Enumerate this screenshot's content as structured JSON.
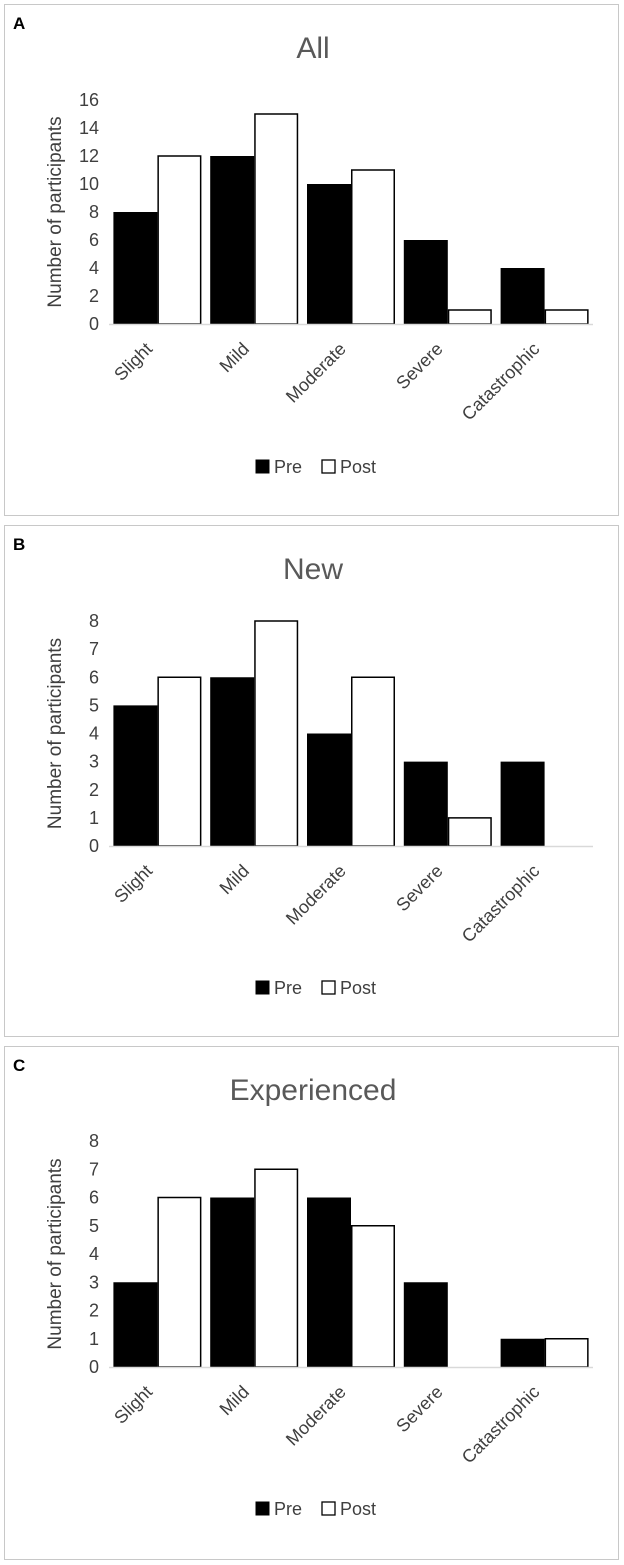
{
  "chart_data": [
    {
      "panel": "A",
      "type": "bar",
      "title": "All",
      "ylabel": "Number of participants",
      "xlabel": "",
      "categories": [
        "Slight",
        "Mild",
        "Moderate",
        "Severe",
        "Catastrophic"
      ],
      "series": [
        {
          "name": "Pre",
          "values": [
            8,
            12,
            10,
            6,
            4
          ]
        },
        {
          "name": "Post",
          "values": [
            12,
            15,
            11,
            1,
            1
          ]
        }
      ],
      "ylim": [
        0,
        16
      ],
      "yticks": [
        0,
        2,
        4,
        6,
        8,
        10,
        12,
        14,
        16
      ],
      "grid": false,
      "legend": "bottom-center"
    },
    {
      "panel": "B",
      "type": "bar",
      "title": "New",
      "ylabel": "Number of participants",
      "xlabel": "",
      "categories": [
        "Slight",
        "Mild",
        "Moderate",
        "Severe",
        "Catastrophic"
      ],
      "series": [
        {
          "name": "Pre",
          "values": [
            5,
            6,
            4,
            3,
            3
          ]
        },
        {
          "name": "Post",
          "values": [
            6,
            8,
            6,
            1,
            0
          ]
        }
      ],
      "ylim": [
        0,
        8
      ],
      "yticks": [
        0,
        1,
        2,
        3,
        4,
        5,
        6,
        7,
        8
      ],
      "grid": false,
      "legend": "bottom-center"
    },
    {
      "panel": "C",
      "type": "bar",
      "title": "Experienced",
      "ylabel": "Number of participants",
      "xlabel": "",
      "categories": [
        "Slight",
        "Mild",
        "Moderate",
        "Severe",
        "Catastrophic"
      ],
      "series": [
        {
          "name": "Pre",
          "values": [
            3,
            6,
            6,
            3,
            1
          ]
        },
        {
          "name": "Post",
          "values": [
            6,
            7,
            5,
            0,
            1
          ]
        }
      ],
      "ylim": [
        0,
        8
      ],
      "yticks": [
        0,
        1,
        2,
        3,
        4,
        5,
        6,
        7,
        8
      ],
      "grid": false,
      "legend": "bottom-center"
    }
  ],
  "colors": {
    "pre": "#000000",
    "post": "#ffffff",
    "axis": "#d9d9d9",
    "text": "#3f3f3f",
    "title": "#595959"
  }
}
